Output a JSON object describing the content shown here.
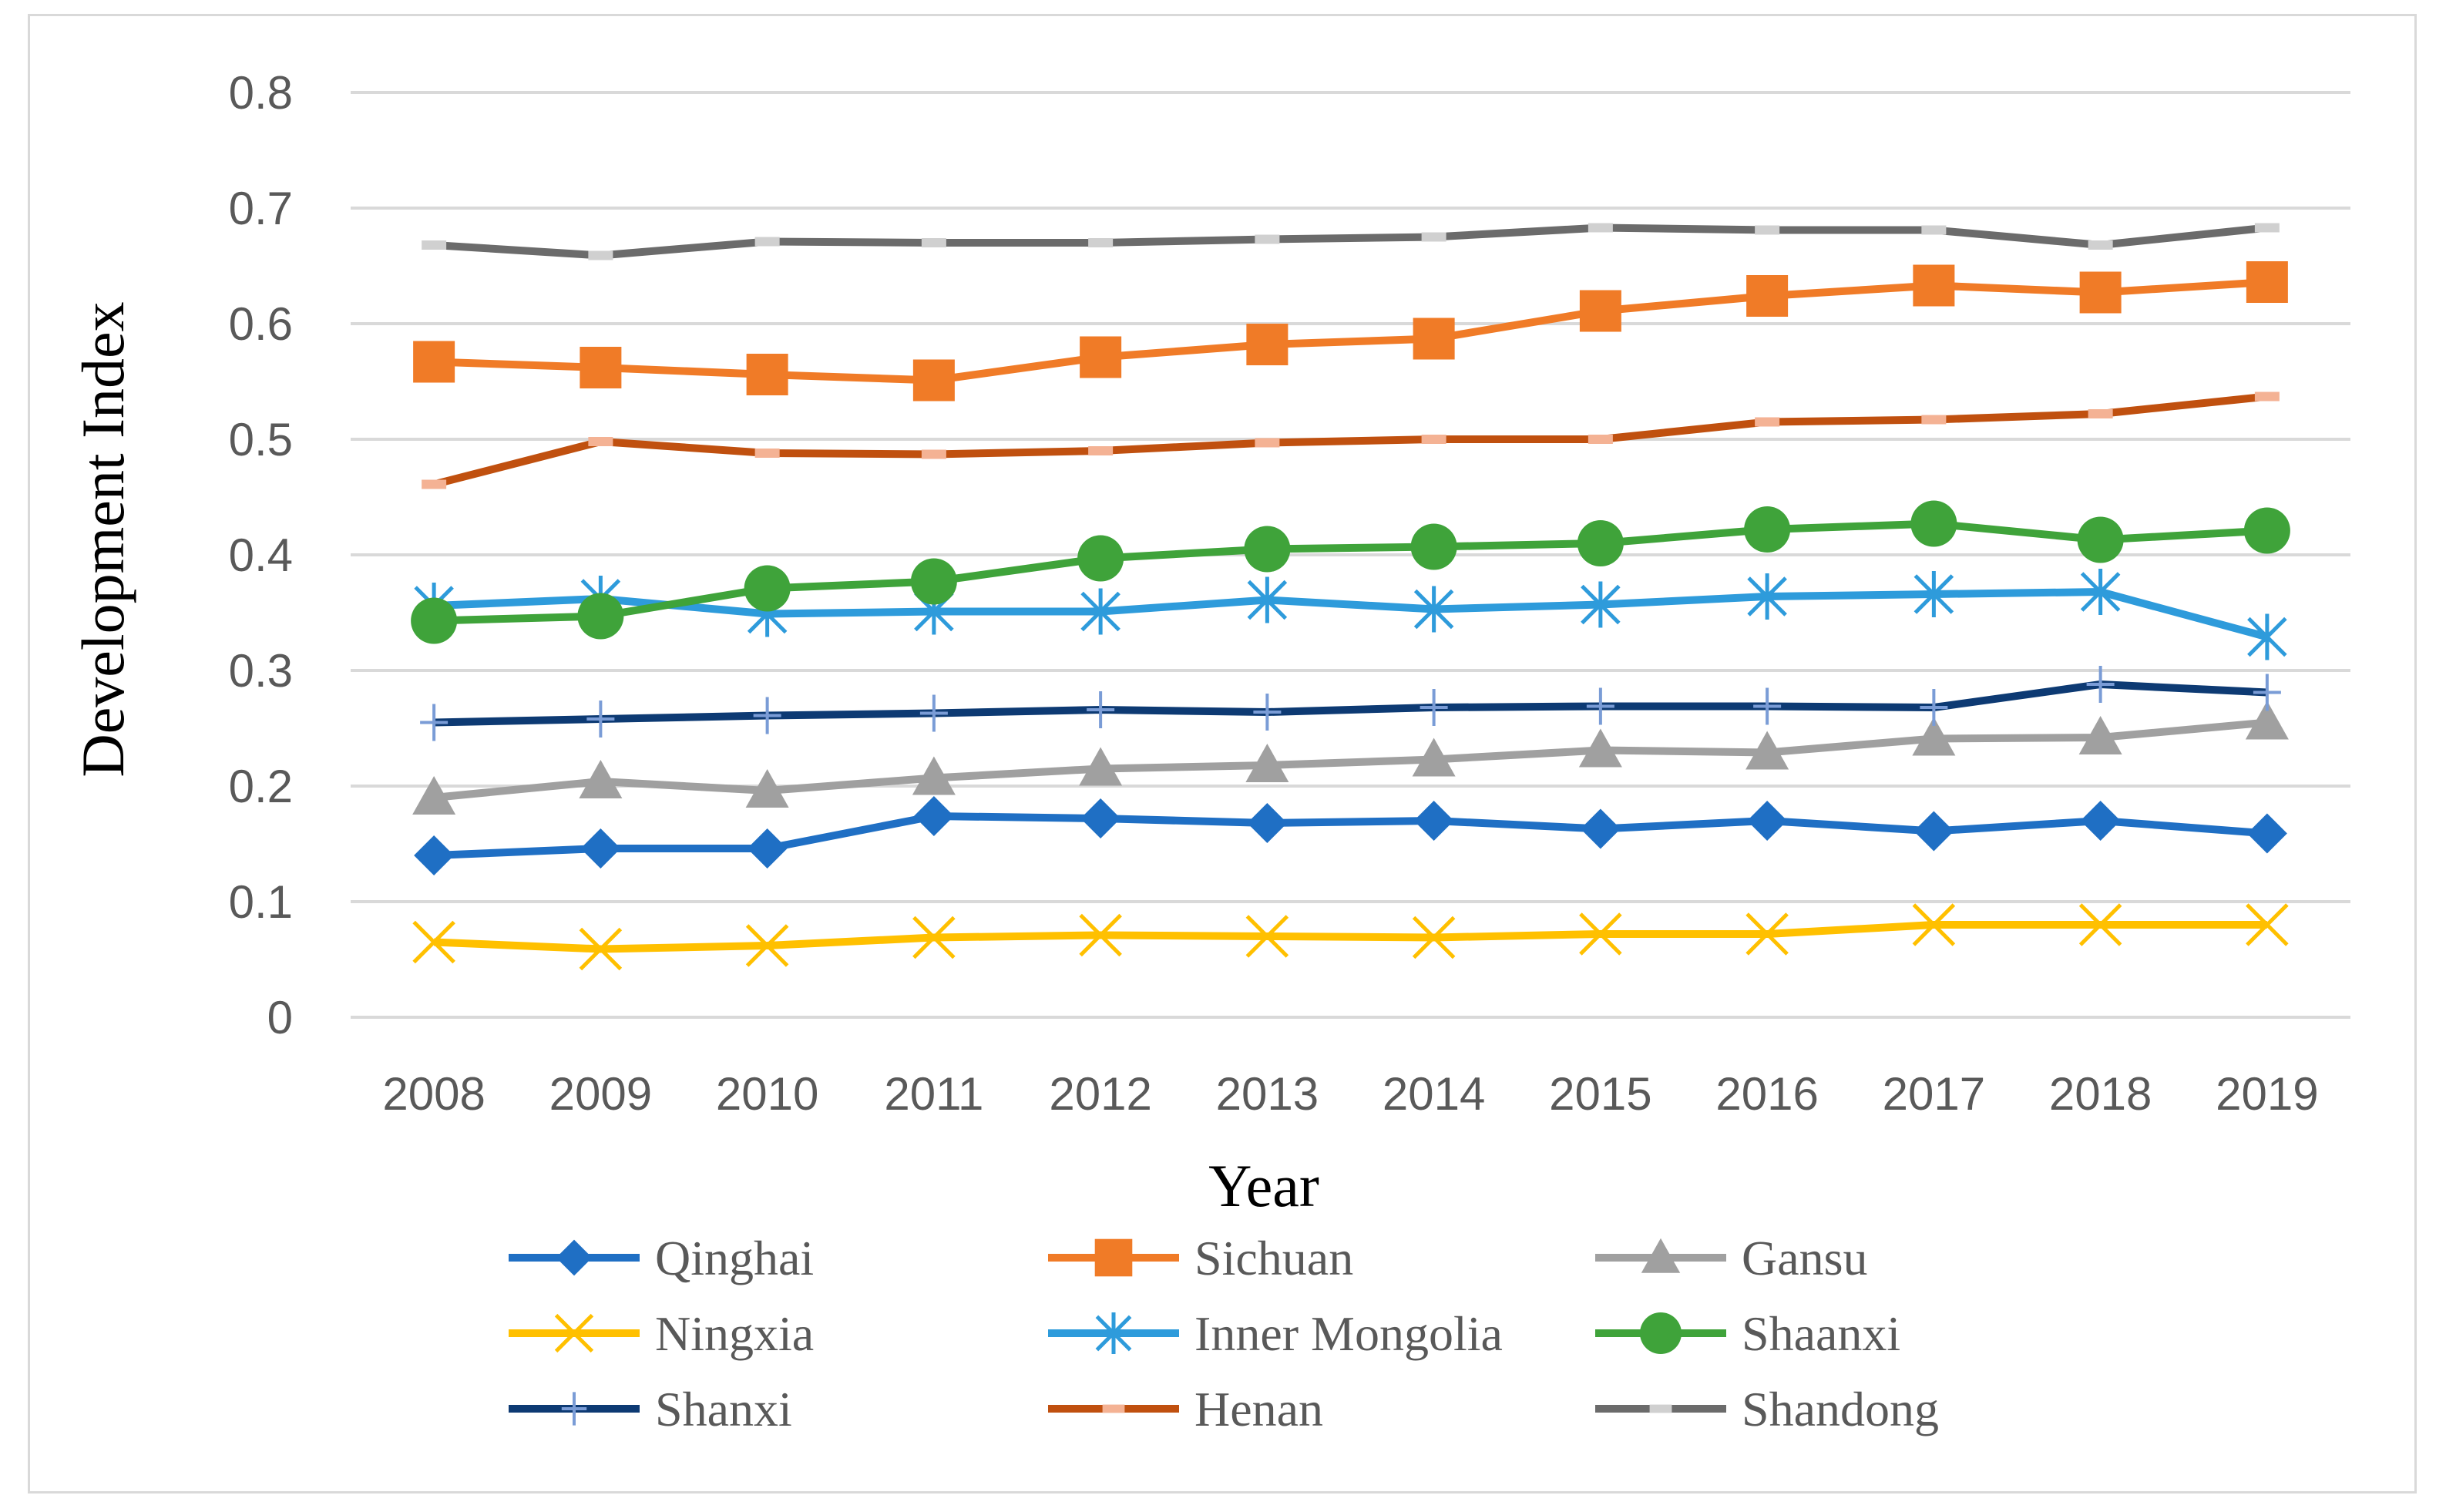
{
  "chart_data": {
    "type": "line",
    "title": "",
    "xlabel": "Year",
    "ylabel": "Development  Index",
    "ylim": [
      0,
      0.8
    ],
    "yticks": [
      "0",
      "0.1",
      "0.2",
      "0.3",
      "0.4",
      "0.5",
      "0.6",
      "0.7",
      "0.8"
    ],
    "grid": true,
    "legend_position": "bottom",
    "categories": [
      "2008",
      "2009",
      "2010",
      "2011",
      "2012",
      "2013",
      "2014",
      "2015",
      "2016",
      "2017",
      "2018",
      "2019"
    ],
    "series": [
      {
        "name": "Qinghai",
        "color": "#1f6fc4",
        "marker": "diamond",
        "values": [
          0.14,
          0.146,
          0.146,
          0.174,
          0.172,
          0.168,
          0.17,
          0.163,
          0.17,
          0.161,
          0.17,
          0.159
        ]
      },
      {
        "name": "Sichuan",
        "color": "#f07b27",
        "marker": "square",
        "values": [
          0.567,
          0.562,
          0.556,
          0.551,
          0.571,
          0.582,
          0.587,
          0.611,
          0.624,
          0.633,
          0.627,
          0.636
        ]
      },
      {
        "name": "Gansu",
        "color": "#a0a0a0",
        "marker": "triangle",
        "values": [
          0.19,
          0.204,
          0.196,
          0.207,
          0.215,
          0.218,
          0.223,
          0.231,
          0.229,
          0.241,
          0.242,
          0.255
        ]
      },
      {
        "name": "Ningxia",
        "color": "#ffc000",
        "marker": "x",
        "values": [
          0.065,
          0.059,
          0.062,
          0.069,
          0.071,
          0.07,
          0.069,
          0.072,
          0.072,
          0.08,
          0.08,
          0.08
        ]
      },
      {
        "name": "Inner Mongolia",
        "color": "#2e9bdb",
        "marker": "star",
        "values": [
          0.356,
          0.362,
          0.349,
          0.351,
          0.351,
          0.361,
          0.353,
          0.357,
          0.364,
          0.366,
          0.368,
          0.329
        ]
      },
      {
        "name": "Shaanxi",
        "color": "#3fa33a",
        "marker": "circle",
        "values": [
          0.343,
          0.347,
          0.371,
          0.377,
          0.397,
          0.405,
          0.407,
          0.41,
          0.422,
          0.427,
          0.413,
          0.421
        ]
      },
      {
        "name": "Shanxi",
        "color": "#0d3a73",
        "marker": "plus",
        "values": [
          0.255,
          0.258,
          0.261,
          0.263,
          0.266,
          0.264,
          0.268,
          0.269,
          0.269,
          0.268,
          0.288,
          0.281
        ]
      },
      {
        "name": "Henan",
        "color": "#c0500f",
        "marker": "dash",
        "values": [
          0.461,
          0.498,
          0.488,
          0.487,
          0.49,
          0.497,
          0.5,
          0.5,
          0.515,
          0.517,
          0.522,
          0.537
        ]
      },
      {
        "name": "Shandong",
        "color": "#6b6b6b",
        "marker": "dash",
        "values": [
          0.668,
          0.659,
          0.671,
          0.67,
          0.67,
          0.673,
          0.675,
          0.683,
          0.681,
          0.681,
          0.668,
          0.683
        ]
      }
    ]
  }
}
